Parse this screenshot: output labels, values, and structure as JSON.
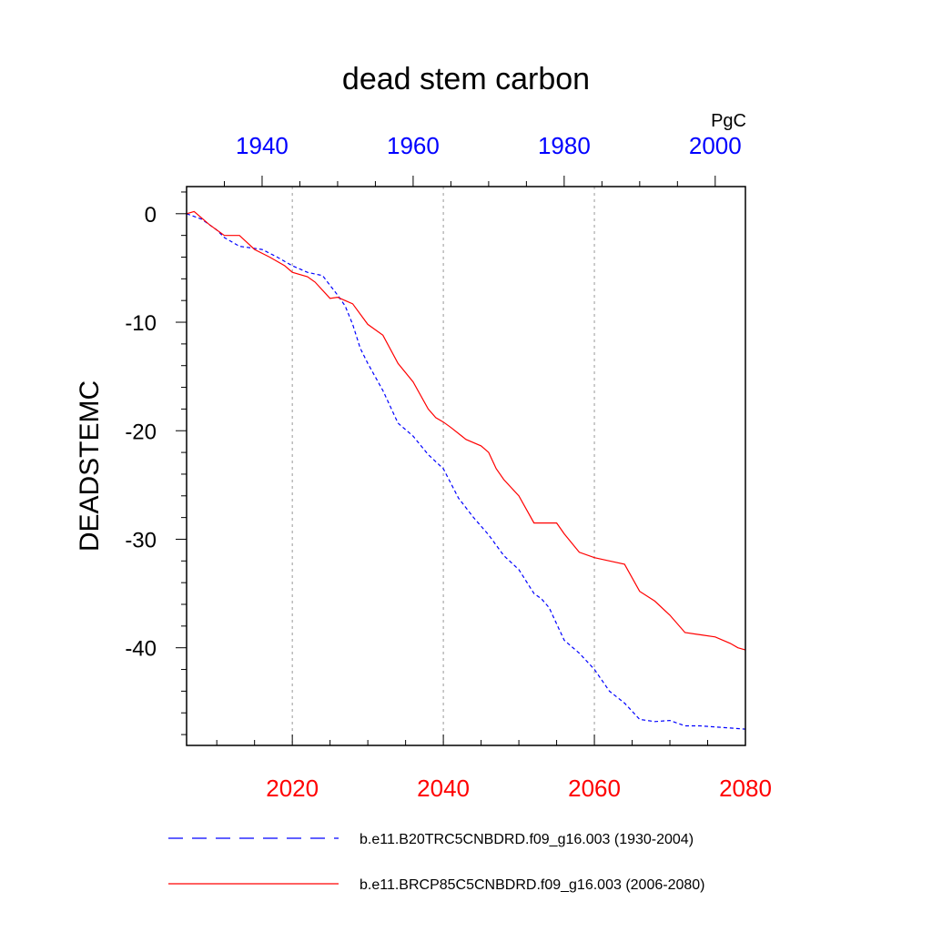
{
  "chart_data": {
    "type": "line",
    "title": "dead stem carbon",
    "ylabel": "DEADSTEMC",
    "units": "PgC",
    "ylim": [
      -49,
      2.5
    ],
    "yticks": [
      {
        "value": 0,
        "label": "0"
      },
      {
        "value": -10,
        "label": "-10"
      },
      {
        "value": -20,
        "label": "-20"
      },
      {
        "value": -30,
        "label": "-30"
      },
      {
        "value": -40,
        "label": "-40"
      }
    ],
    "grid": "vertical dotted at bottom-axis major ticks",
    "x_bottom": {
      "range": [
        2006,
        2080
      ],
      "ticks": [
        2020,
        2040,
        2060,
        2080
      ],
      "color": "#ff0000"
    },
    "x_top": {
      "range": [
        1930,
        2004
      ],
      "ticks": [
        1940,
        1960,
        1980,
        2000
      ],
      "color": "#0000ff"
    },
    "series": [
      {
        "name": "b.e11.B20TRC5CNBDRD.f09_g16.003 (1930-2004)",
        "axis": "top",
        "color": "#0000ff",
        "style": "dashed",
        "x": [
          1930,
          1932,
          1934,
          1935,
          1937,
          1940,
          1942,
          1944,
          1946,
          1948,
          1950,
          1951,
          1952,
          1953,
          1954,
          1956,
          1958,
          1960,
          1962,
          1964,
          1966,
          1968,
          1970,
          1972,
          1974,
          1976,
          1977,
          1978,
          1980,
          1982,
          1984,
          1986,
          1988,
          1990,
          1992,
          1994,
          1996,
          1998,
          2000,
          2002,
          2004
        ],
        "y": [
          0,
          -0.5,
          -1.5,
          -2.2,
          -3.0,
          -3.3,
          -4.0,
          -4.8,
          -5.4,
          -5.7,
          -7.5,
          -8.5,
          -10.2,
          -12.4,
          -13.8,
          -16.3,
          -19.3,
          -20.5,
          -22.2,
          -23.5,
          -26.2,
          -28.0,
          -29.6,
          -31.5,
          -32.8,
          -35.0,
          -35.5,
          -36.3,
          -39.3,
          -40.5,
          -42.0,
          -44.0,
          -45.1,
          -46.6,
          -46.8,
          -46.7,
          -47.2,
          -47.2,
          -47.3,
          -47.4,
          -47.5
        ]
      },
      {
        "name": "b.e11.BRCP85C5CNBDRD.f09_g16.003 (2006-2080)",
        "axis": "bottom",
        "color": "#ff0000",
        "style": "solid",
        "x": [
          2006,
          2007,
          2009,
          2011,
          2013,
          2015,
          2017,
          2019,
          2020,
          2022,
          2023,
          2025,
          2026,
          2028,
          2030,
          2032,
          2034,
          2036,
          2038,
          2039,
          2040,
          2041,
          2043,
          2045,
          2046,
          2047,
          2048,
          2050,
          2052,
          2054,
          2055,
          2056,
          2058,
          2060,
          2062,
          2064,
          2066,
          2068,
          2070,
          2072,
          2074,
          2076,
          2078,
          2079,
          2080
        ],
        "y": [
          0,
          0.2,
          -1.0,
          -2.0,
          -2.0,
          -3.3,
          -4.0,
          -4.8,
          -5.4,
          -5.8,
          -6.3,
          -7.8,
          -7.7,
          -8.3,
          -10.2,
          -11.2,
          -13.8,
          -15.5,
          -18.0,
          -18.8,
          -19.2,
          -19.7,
          -20.8,
          -21.4,
          -22.0,
          -23.5,
          -24.5,
          -26.0,
          -28.5,
          -28.5,
          -28.5,
          -29.5,
          -31.2,
          -31.7,
          -32.0,
          -32.3,
          -34.8,
          -35.7,
          -37.0,
          -38.6,
          -38.8,
          -39.0,
          -39.6,
          -40.0,
          -40.2
        ]
      }
    ],
    "legend": {
      "position": "bottom",
      "entries": [
        "b.e11.B20TRC5CNBDRD.f09_g16.003 (1930-2004)",
        "b.e11.BRCP85C5CNBDRD.f09_g16.003 (2006-2080)"
      ]
    }
  }
}
